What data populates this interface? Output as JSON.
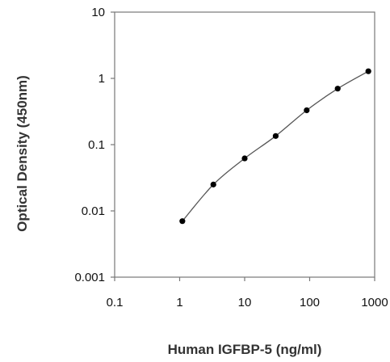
{
  "chart_data": {
    "type": "line",
    "xscale": "log",
    "yscale": "log",
    "xlim": [
      0.1,
      1000
    ],
    "ylim": [
      0.001,
      10
    ],
    "xlabel": "Human IGFBP-5 (ng/ml)",
    "ylabel": "Optical Density (450nm)",
    "xticks": [
      "0.1",
      "1",
      "10",
      "100",
      "1000"
    ],
    "yticks": [
      "0.001",
      "0.01",
      "0.1",
      "1",
      "10"
    ],
    "grid": false,
    "series": [
      {
        "x": [
          1.1,
          3.3,
          10,
          30,
          90,
          270,
          800
        ],
        "y": [
          0.007,
          0.025,
          0.062,
          0.135,
          0.33,
          0.7,
          1.28
        ]
      }
    ]
  }
}
